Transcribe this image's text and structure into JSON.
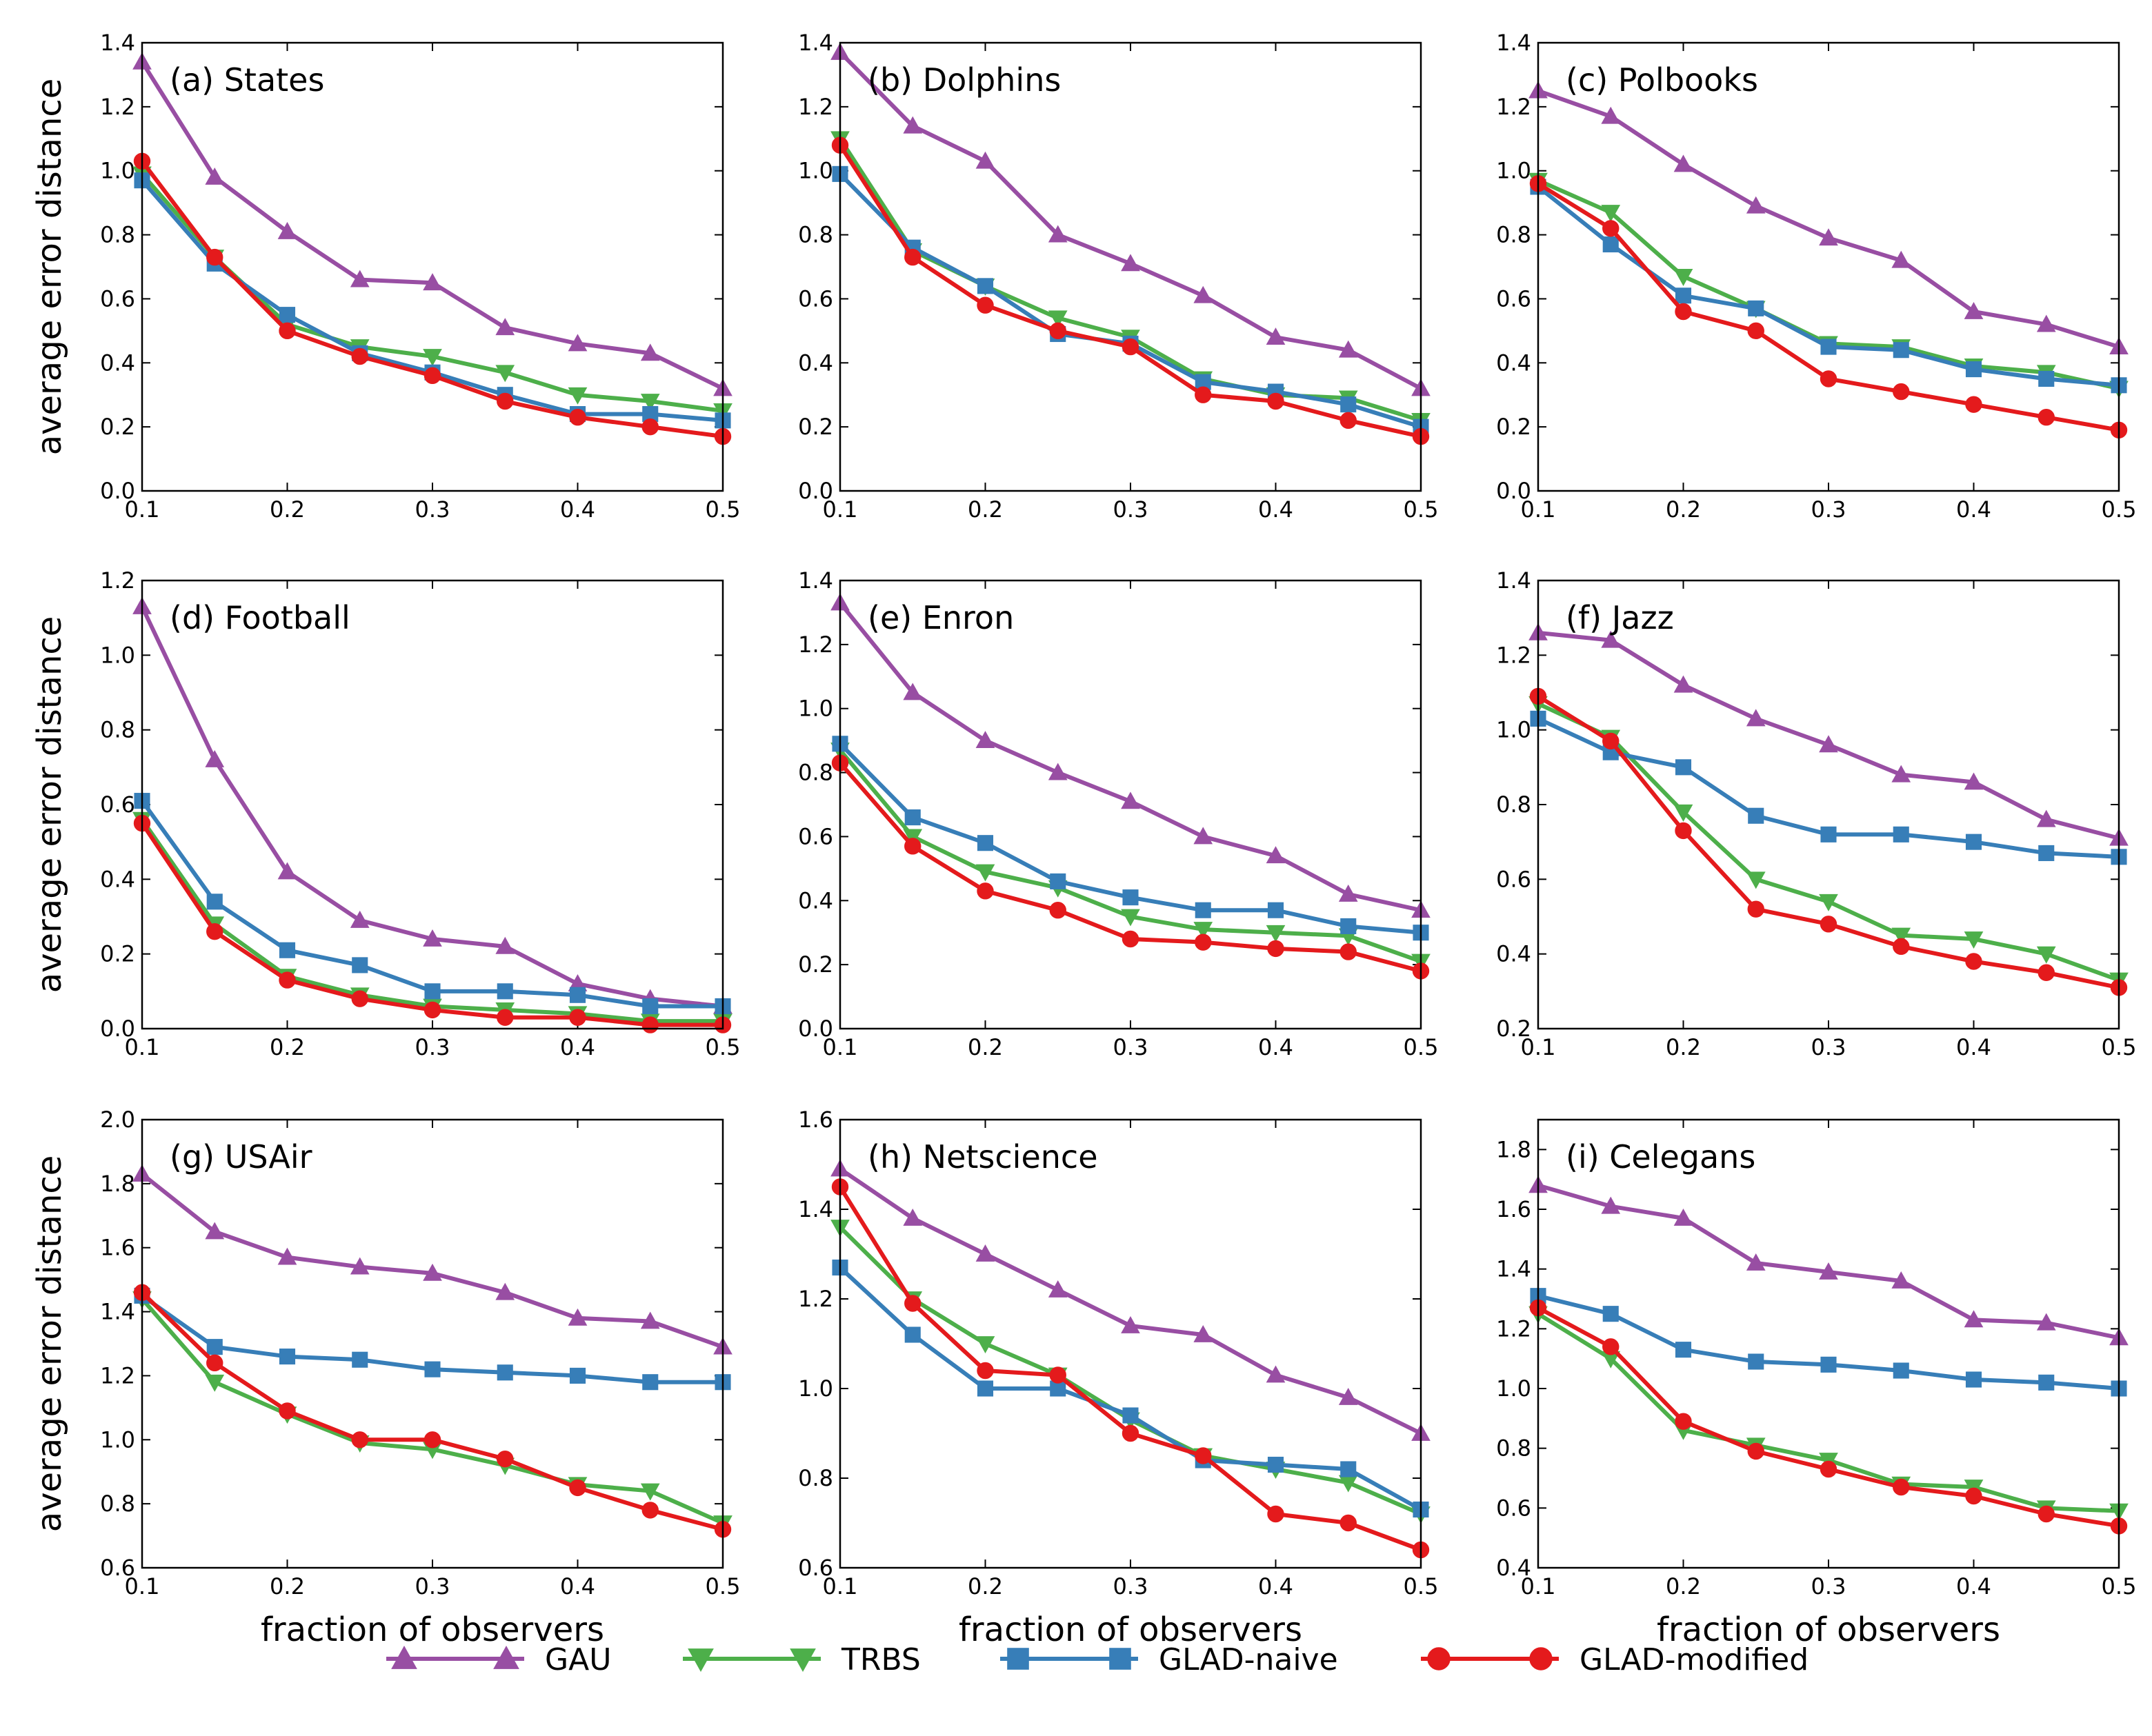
{
  "colors": {
    "GAU": "#984ea3",
    "TRBS": "#4daf4a",
    "GLAD-naive": "#377eb8",
    "GLAD-modified": "#e41a1c"
  },
  "legend": [
    {
      "name": "GAU",
      "marker": "triangle-up"
    },
    {
      "name": "TRBS",
      "marker": "triangle-down"
    },
    {
      "name": "GLAD-naive",
      "marker": "square"
    },
    {
      "name": "GLAD-modified",
      "marker": "circle"
    }
  ],
  "chart_data": [
    {
      "type": "line",
      "title": "(a) States",
      "xlabel": "",
      "ylabel": "average error distance",
      "x": [
        0.1,
        0.15,
        0.2,
        0.25,
        0.3,
        0.35,
        0.4,
        0.45,
        0.5
      ],
      "xlim": [
        0.1,
        0.5
      ],
      "xticks": [
        "0.1",
        "0.2",
        "0.3",
        "0.4",
        "0.5"
      ],
      "xtick_values": [
        0.1,
        0.2,
        0.3,
        0.4,
        0.5
      ],
      "ylim": [
        0.0,
        1.4
      ],
      "yticks": [
        "0.0",
        "0.2",
        "0.4",
        "0.6",
        "0.8",
        "1.0",
        "1.2",
        "1.4"
      ],
      "ytick_values": [
        0.0,
        0.2,
        0.4,
        0.6,
        0.8,
        1.0,
        1.2,
        1.4
      ],
      "series": [
        {
          "name": "GAU",
          "values": [
            1.34,
            0.98,
            0.81,
            0.66,
            0.65,
            0.51,
            0.46,
            0.43,
            0.32
          ]
        },
        {
          "name": "TRBS",
          "values": [
            0.99,
            0.73,
            0.52,
            0.45,
            0.42,
            0.37,
            0.3,
            0.28,
            0.25
          ]
        },
        {
          "name": "GLAD-naive",
          "values": [
            0.97,
            0.71,
            0.55,
            0.43,
            0.37,
            0.3,
            0.24,
            0.24,
            0.22
          ]
        },
        {
          "name": "GLAD-modified",
          "values": [
            1.03,
            0.73,
            0.5,
            0.42,
            0.36,
            0.28,
            0.23,
            0.2,
            0.17
          ]
        }
      ]
    },
    {
      "type": "line",
      "title": "(b) Dolphins",
      "xlabel": "",
      "ylabel": "",
      "x": [
        0.1,
        0.15,
        0.2,
        0.25,
        0.3,
        0.35,
        0.4,
        0.45,
        0.5
      ],
      "xlim": [
        0.1,
        0.5
      ],
      "xticks": [
        "0.1",
        "0.2",
        "0.3",
        "0.4",
        "0.5"
      ],
      "xtick_values": [
        0.1,
        0.2,
        0.3,
        0.4,
        0.5
      ],
      "ylim": [
        0.0,
        1.4
      ],
      "yticks": [
        "0.0",
        "0.2",
        "0.4",
        "0.6",
        "0.8",
        "1.0",
        "1.2",
        "1.4"
      ],
      "ytick_values": [
        0.0,
        0.2,
        0.4,
        0.6,
        0.8,
        1.0,
        1.2,
        1.4
      ],
      "series": [
        {
          "name": "GAU",
          "values": [
            1.37,
            1.14,
            1.03,
            0.8,
            0.71,
            0.61,
            0.48,
            0.44,
            0.32
          ]
        },
        {
          "name": "TRBS",
          "values": [
            1.1,
            0.75,
            0.64,
            0.54,
            0.48,
            0.35,
            0.3,
            0.29,
            0.22
          ]
        },
        {
          "name": "GLAD-naive",
          "values": [
            0.99,
            0.76,
            0.64,
            0.49,
            0.46,
            0.34,
            0.31,
            0.27,
            0.2
          ]
        },
        {
          "name": "GLAD-modified",
          "values": [
            1.08,
            0.73,
            0.58,
            0.5,
            0.45,
            0.3,
            0.28,
            0.22,
            0.17
          ]
        }
      ]
    },
    {
      "type": "line",
      "title": "(c) Polbooks",
      "xlabel": "",
      "ylabel": "",
      "x": [
        0.1,
        0.15,
        0.2,
        0.25,
        0.3,
        0.35,
        0.4,
        0.45,
        0.5
      ],
      "xlim": [
        0.1,
        0.5
      ],
      "xticks": [
        "0.1",
        "0.2",
        "0.3",
        "0.4",
        "0.5"
      ],
      "xtick_values": [
        0.1,
        0.2,
        0.3,
        0.4,
        0.5
      ],
      "ylim": [
        0.0,
        1.4
      ],
      "yticks": [
        "0.0",
        "0.2",
        "0.4",
        "0.6",
        "0.8",
        "1.0",
        "1.2",
        "1.4"
      ],
      "ytick_values": [
        0.0,
        0.2,
        0.4,
        0.6,
        0.8,
        1.0,
        1.2,
        1.4
      ],
      "series": [
        {
          "name": "GAU",
          "values": [
            1.25,
            1.17,
            1.02,
            0.89,
            0.79,
            0.72,
            0.56,
            0.52,
            0.45
          ]
        },
        {
          "name": "TRBS",
          "values": [
            0.97,
            0.87,
            0.67,
            0.57,
            0.46,
            0.45,
            0.39,
            0.37,
            0.32
          ]
        },
        {
          "name": "GLAD-naive",
          "values": [
            0.95,
            0.77,
            0.61,
            0.57,
            0.45,
            0.44,
            0.38,
            0.35,
            0.33
          ]
        },
        {
          "name": "GLAD-modified",
          "values": [
            0.96,
            0.82,
            0.56,
            0.5,
            0.35,
            0.31,
            0.27,
            0.23,
            0.19
          ]
        }
      ]
    },
    {
      "type": "line",
      "title": "(d) Football",
      "xlabel": "",
      "ylabel": "average error distance",
      "x": [
        0.1,
        0.15,
        0.2,
        0.25,
        0.3,
        0.35,
        0.4,
        0.45,
        0.5
      ],
      "xlim": [
        0.1,
        0.5
      ],
      "xticks": [
        "0.1",
        "0.2",
        "0.3",
        "0.4",
        "0.5"
      ],
      "xtick_values": [
        0.1,
        0.2,
        0.3,
        0.4,
        0.5
      ],
      "ylim": [
        0.0,
        1.2
      ],
      "yticks": [
        "0.0",
        "0.2",
        "0.4",
        "0.6",
        "0.8",
        "1.0",
        "1.2"
      ],
      "ytick_values": [
        0.0,
        0.2,
        0.4,
        0.6,
        0.8,
        1.0,
        1.2
      ],
      "series": [
        {
          "name": "GAU",
          "values": [
            1.13,
            0.72,
            0.42,
            0.29,
            0.24,
            0.22,
            0.12,
            0.08,
            0.06
          ]
        },
        {
          "name": "TRBS",
          "values": [
            0.56,
            0.28,
            0.14,
            0.09,
            0.06,
            0.05,
            0.04,
            0.02,
            0.02
          ]
        },
        {
          "name": "GLAD-naive",
          "values": [
            0.61,
            0.34,
            0.21,
            0.17,
            0.1,
            0.1,
            0.09,
            0.06,
            0.06
          ]
        },
        {
          "name": "GLAD-modified",
          "values": [
            0.55,
            0.26,
            0.13,
            0.08,
            0.05,
            0.03,
            0.03,
            0.01,
            0.01
          ]
        }
      ]
    },
    {
      "type": "line",
      "title": "(e) Enron",
      "xlabel": "",
      "ylabel": "",
      "x": [
        0.1,
        0.15,
        0.2,
        0.25,
        0.3,
        0.35,
        0.4,
        0.45,
        0.5
      ],
      "xlim": [
        0.1,
        0.5
      ],
      "xticks": [
        "0.1",
        "0.2",
        "0.3",
        "0.4",
        "0.5"
      ],
      "xtick_values": [
        0.1,
        0.2,
        0.3,
        0.4,
        0.5
      ],
      "ylim": [
        0.0,
        1.4
      ],
      "yticks": [
        "0.0",
        "0.2",
        "0.4",
        "0.6",
        "0.8",
        "1.0",
        "1.2",
        "1.4"
      ],
      "ytick_values": [
        0.0,
        0.2,
        0.4,
        0.6,
        0.8,
        1.0,
        1.2,
        1.4
      ],
      "series": [
        {
          "name": "GAU",
          "values": [
            1.33,
            1.05,
            0.9,
            0.8,
            0.71,
            0.6,
            0.54,
            0.42,
            0.37
          ]
        },
        {
          "name": "TRBS",
          "values": [
            0.87,
            0.6,
            0.49,
            0.44,
            0.35,
            0.31,
            0.3,
            0.29,
            0.21
          ]
        },
        {
          "name": "GLAD-naive",
          "values": [
            0.89,
            0.66,
            0.58,
            0.46,
            0.41,
            0.37,
            0.37,
            0.32,
            0.3
          ]
        },
        {
          "name": "GLAD-modified",
          "values": [
            0.83,
            0.57,
            0.43,
            0.37,
            0.28,
            0.27,
            0.25,
            0.24,
            0.18
          ]
        }
      ]
    },
    {
      "type": "line",
      "title": "(f) Jazz",
      "xlabel": "",
      "ylabel": "",
      "x": [
        0.1,
        0.15,
        0.2,
        0.25,
        0.3,
        0.35,
        0.4,
        0.45,
        0.5
      ],
      "xlim": [
        0.1,
        0.5
      ],
      "xticks": [
        "0.1",
        "0.2",
        "0.3",
        "0.4",
        "0.5"
      ],
      "xtick_values": [
        0.1,
        0.2,
        0.3,
        0.4,
        0.5
      ],
      "ylim": [
        0.2,
        1.4
      ],
      "yticks": [
        "0.2",
        "0.4",
        "0.6",
        "0.8",
        "1.0",
        "1.2",
        "1.4"
      ],
      "ytick_values": [
        0.2,
        0.4,
        0.6,
        0.8,
        1.0,
        1.2,
        1.4
      ],
      "series": [
        {
          "name": "GAU",
          "values": [
            1.26,
            1.24,
            1.12,
            1.03,
            0.96,
            0.88,
            0.86,
            0.76,
            0.71
          ]
        },
        {
          "name": "TRBS",
          "values": [
            1.07,
            0.98,
            0.78,
            0.6,
            0.54,
            0.45,
            0.44,
            0.4,
            0.33
          ]
        },
        {
          "name": "GLAD-naive",
          "values": [
            1.03,
            0.94,
            0.9,
            0.77,
            0.72,
            0.72,
            0.7,
            0.67,
            0.66
          ]
        },
        {
          "name": "GLAD-modified",
          "values": [
            1.09,
            0.97,
            0.73,
            0.52,
            0.48,
            0.42,
            0.38,
            0.35,
            0.31
          ]
        }
      ]
    },
    {
      "type": "line",
      "title": "(g) USAir",
      "xlabel": "fraction of observers",
      "ylabel": "average error distance",
      "x": [
        0.1,
        0.15,
        0.2,
        0.25,
        0.3,
        0.35,
        0.4,
        0.45,
        0.5
      ],
      "xlim": [
        0.1,
        0.5
      ],
      "xticks": [
        "0.1",
        "0.2",
        "0.3",
        "0.4",
        "0.5"
      ],
      "xtick_values": [
        0.1,
        0.2,
        0.3,
        0.4,
        0.5
      ],
      "ylim": [
        0.6,
        2.0
      ],
      "yticks": [
        "0.6",
        "0.8",
        "1.0",
        "1.2",
        "1.4",
        "1.6",
        "1.8",
        "2.0"
      ],
      "ytick_values": [
        0.6,
        0.8,
        1.0,
        1.2,
        1.4,
        1.6,
        1.8,
        2.0
      ],
      "series": [
        {
          "name": "GAU",
          "values": [
            1.83,
            1.65,
            1.57,
            1.54,
            1.52,
            1.46,
            1.38,
            1.37,
            1.29
          ]
        },
        {
          "name": "TRBS",
          "values": [
            1.44,
            1.18,
            1.08,
            0.99,
            0.97,
            0.92,
            0.86,
            0.84,
            0.74
          ]
        },
        {
          "name": "GLAD-naive",
          "values": [
            1.45,
            1.29,
            1.26,
            1.25,
            1.22,
            1.21,
            1.2,
            1.18,
            1.18
          ]
        },
        {
          "name": "GLAD-modified",
          "values": [
            1.46,
            1.24,
            1.09,
            1.0,
            1.0,
            0.94,
            0.85,
            0.78,
            0.72
          ]
        }
      ]
    },
    {
      "type": "line",
      "title": "(h) Netscience",
      "xlabel": "fraction of observers",
      "ylabel": "",
      "x": [
        0.1,
        0.15,
        0.2,
        0.25,
        0.3,
        0.35,
        0.4,
        0.45,
        0.5
      ],
      "xlim": [
        0.1,
        0.5
      ],
      "xticks": [
        "0.1",
        "0.2",
        "0.3",
        "0.4",
        "0.5"
      ],
      "xtick_values": [
        0.1,
        0.2,
        0.3,
        0.4,
        0.5
      ],
      "ylim": [
        0.6,
        1.6
      ],
      "yticks": [
        "0.6",
        "0.8",
        "1.0",
        "1.2",
        "1.4",
        "1.6"
      ],
      "ytick_values": [
        0.6,
        0.8,
        1.0,
        1.2,
        1.4,
        1.6
      ],
      "series": [
        {
          "name": "GAU",
          "values": [
            1.49,
            1.38,
            1.3,
            1.22,
            1.14,
            1.12,
            1.03,
            0.98,
            0.9
          ]
        },
        {
          "name": "TRBS",
          "values": [
            1.36,
            1.2,
            1.1,
            1.03,
            0.93,
            0.85,
            0.82,
            0.79,
            0.72
          ]
        },
        {
          "name": "GLAD-naive",
          "values": [
            1.27,
            1.12,
            1.0,
            1.0,
            0.94,
            0.84,
            0.83,
            0.82,
            0.73
          ]
        },
        {
          "name": "GLAD-modified",
          "values": [
            1.45,
            1.19,
            1.04,
            1.03,
            0.9,
            0.85,
            0.72,
            0.7,
            0.64
          ]
        }
      ]
    },
    {
      "type": "line",
      "title": "(i) Celegans",
      "xlabel": "fraction of observers",
      "ylabel": "",
      "x": [
        0.1,
        0.15,
        0.2,
        0.25,
        0.3,
        0.35,
        0.4,
        0.45,
        0.5
      ],
      "xlim": [
        0.1,
        0.5
      ],
      "xticks": [
        "0.1",
        "0.2",
        "0.3",
        "0.4",
        "0.5"
      ],
      "xtick_values": [
        0.1,
        0.2,
        0.3,
        0.4,
        0.5
      ],
      "ylim": [
        0.4,
        1.9
      ],
      "yticks": [
        "0.4",
        "0.6",
        "0.8",
        "1.0",
        "1.2",
        "1.4",
        "1.6",
        "1.8"
      ],
      "ytick_values": [
        0.4,
        0.6,
        0.8,
        1.0,
        1.2,
        1.4,
        1.6,
        1.8
      ],
      "series": [
        {
          "name": "GAU",
          "values": [
            1.68,
            1.61,
            1.57,
            1.42,
            1.39,
            1.36,
            1.23,
            1.22,
            1.17
          ]
        },
        {
          "name": "TRBS",
          "values": [
            1.25,
            1.1,
            0.86,
            0.81,
            0.76,
            0.68,
            0.67,
            0.6,
            0.59
          ]
        },
        {
          "name": "GLAD-naive",
          "values": [
            1.31,
            1.25,
            1.13,
            1.09,
            1.08,
            1.06,
            1.03,
            1.02,
            1.0
          ]
        },
        {
          "name": "GLAD-modified",
          "values": [
            1.27,
            1.14,
            0.89,
            0.79,
            0.73,
            0.67,
            0.64,
            0.58,
            0.54
          ]
        }
      ]
    }
  ]
}
